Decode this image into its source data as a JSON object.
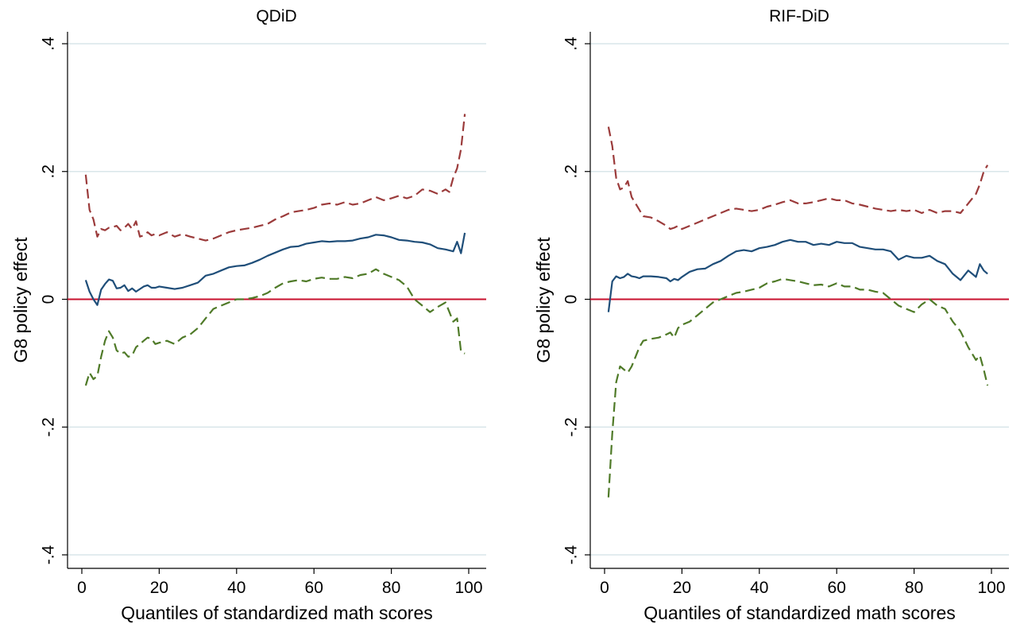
{
  "colors": {
    "estimate": "#1f4e79",
    "upper": "#9b3b3b",
    "lower": "#4f7a28",
    "zero_line": "#c8102e",
    "grid": "#d9e6ea"
  },
  "chart_data": [
    {
      "type": "line",
      "title": "QDiD",
      "xlabel": "Quantiles of standardized math scores",
      "ylabel": "G8 policy effect",
      "xlim": [
        0,
        100
      ],
      "ylim": [
        -0.4,
        0.4
      ],
      "xticks": [
        0,
        20,
        40,
        60,
        80,
        100
      ],
      "yticks": [
        -0.4,
        -0.2,
        0,
        0.2,
        0.4
      ],
      "ytick_labels": [
        "-.4",
        "-.2",
        "0",
        ".2",
        ".4"
      ],
      "grid": true,
      "reference_line_y": 0,
      "series": [
        {
          "role": "estimate",
          "style": "solid",
          "x": [
            1,
            2,
            3,
            4,
            5,
            6,
            7,
            8,
            9,
            10,
            11,
            12,
            13,
            14,
            15,
            16,
            17,
            18,
            19,
            20,
            22,
            24,
            26,
            28,
            30,
            32,
            34,
            36,
            38,
            40,
            42,
            44,
            46,
            48,
            50,
            52,
            54,
            56,
            58,
            60,
            62,
            64,
            66,
            68,
            70,
            72,
            74,
            76,
            78,
            80,
            82,
            84,
            86,
            88,
            90,
            92,
            94,
            96,
            97,
            98,
            99
          ],
          "values": [
            0.03,
            0.012,
            0.0,
            -0.009,
            0.015,
            0.024,
            0.031,
            0.029,
            0.017,
            0.018,
            0.022,
            0.013,
            0.017,
            0.012,
            0.016,
            0.02,
            0.022,
            0.018,
            0.018,
            0.02,
            0.018,
            0.016,
            0.018,
            0.022,
            0.026,
            0.037,
            0.04,
            0.045,
            0.05,
            0.052,
            0.053,
            0.057,
            0.062,
            0.068,
            0.073,
            0.078,
            0.082,
            0.083,
            0.087,
            0.089,
            0.091,
            0.09,
            0.091,
            0.091,
            0.092,
            0.095,
            0.097,
            0.101,
            0.1,
            0.097,
            0.093,
            0.092,
            0.09,
            0.089,
            0.086,
            0.08,
            0.078,
            0.075,
            0.09,
            0.072,
            0.104
          ]
        },
        {
          "role": "upper",
          "style": "dashed",
          "x": [
            1,
            2,
            3,
            4,
            5,
            6,
            7,
            8,
            9,
            10,
            11,
            12,
            13,
            14,
            15,
            16,
            17,
            18,
            19,
            20,
            22,
            24,
            26,
            28,
            30,
            32,
            34,
            36,
            38,
            40,
            42,
            44,
            46,
            48,
            50,
            52,
            54,
            56,
            58,
            60,
            62,
            64,
            66,
            68,
            70,
            72,
            74,
            76,
            78,
            80,
            82,
            84,
            86,
            88,
            90,
            92,
            94,
            95,
            96,
            97,
            98,
            99
          ],
          "values": [
            0.195,
            0.14,
            0.125,
            0.098,
            0.11,
            0.108,
            0.112,
            0.113,
            0.115,
            0.108,
            0.112,
            0.118,
            0.11,
            0.122,
            0.098,
            0.1,
            0.105,
            0.1,
            0.102,
            0.1,
            0.105,
            0.098,
            0.102,
            0.098,
            0.095,
            0.092,
            0.095,
            0.1,
            0.105,
            0.108,
            0.11,
            0.112,
            0.115,
            0.118,
            0.125,
            0.13,
            0.136,
            0.138,
            0.14,
            0.143,
            0.148,
            0.15,
            0.148,
            0.152,
            0.148,
            0.15,
            0.155,
            0.16,
            0.155,
            0.158,
            0.162,
            0.158,
            0.162,
            0.172,
            0.17,
            0.165,
            0.172,
            0.168,
            0.19,
            0.205,
            0.235,
            0.29
          ]
        },
        {
          "role": "lower",
          "style": "dashed",
          "x": [
            1,
            2,
            3,
            4,
            5,
            6,
            7,
            8,
            9,
            10,
            11,
            12,
            13,
            14,
            15,
            16,
            17,
            18,
            19,
            20,
            22,
            24,
            26,
            28,
            30,
            32,
            34,
            36,
            38,
            40,
            42,
            44,
            46,
            48,
            50,
            52,
            54,
            56,
            58,
            60,
            62,
            64,
            66,
            68,
            70,
            72,
            74,
            76,
            78,
            80,
            82,
            84,
            86,
            88,
            90,
            92,
            94,
            96,
            97,
            98,
            99
          ],
          "values": [
            -0.135,
            -0.115,
            -0.125,
            -0.12,
            -0.09,
            -0.065,
            -0.05,
            -0.06,
            -0.08,
            -0.085,
            -0.083,
            -0.09,
            -0.088,
            -0.075,
            -0.07,
            -0.065,
            -0.06,
            -0.062,
            -0.07,
            -0.068,
            -0.065,
            -0.07,
            -0.06,
            -0.055,
            -0.045,
            -0.03,
            -0.015,
            -0.01,
            -0.005,
            0.0,
            0.0,
            0.002,
            0.005,
            0.01,
            0.018,
            0.025,
            0.028,
            0.03,
            0.028,
            0.032,
            0.034,
            0.032,
            0.032,
            0.035,
            0.033,
            0.038,
            0.04,
            0.047,
            0.04,
            0.035,
            0.03,
            0.02,
            0.0,
            -0.01,
            -0.02,
            -0.012,
            -0.005,
            -0.035,
            -0.03,
            -0.082,
            -0.085
          ]
        }
      ]
    },
    {
      "type": "line",
      "title": "RIF-DiD",
      "xlabel": "Quantiles of standardized math scores",
      "ylabel": "G8 policy effect",
      "xlim": [
        0,
        100
      ],
      "ylim": [
        -0.4,
        0.4
      ],
      "xticks": [
        0,
        20,
        40,
        60,
        80,
        100
      ],
      "yticks": [
        -0.4,
        -0.2,
        0,
        0.2,
        0.4
      ],
      "ytick_labels": [
        "-.4",
        "-.2",
        "0",
        ".2",
        ".4"
      ],
      "grid": true,
      "reference_line_y": 0,
      "series": [
        {
          "role": "estimate",
          "style": "solid",
          "x": [
            1,
            2,
            3,
            4,
            5,
            6,
            7,
            8,
            9,
            10,
            12,
            14,
            16,
            17,
            18,
            19,
            20,
            22,
            24,
            26,
            28,
            30,
            32,
            34,
            36,
            38,
            40,
            42,
            44,
            46,
            48,
            50,
            52,
            54,
            56,
            58,
            60,
            62,
            64,
            66,
            68,
            70,
            72,
            74,
            76,
            78,
            80,
            82,
            84,
            86,
            88,
            90,
            92,
            94,
            96,
            97,
            98,
            99
          ],
          "values": [
            -0.02,
            0.028,
            0.036,
            0.033,
            0.035,
            0.04,
            0.036,
            0.035,
            0.033,
            0.036,
            0.036,
            0.035,
            0.033,
            0.028,
            0.032,
            0.03,
            0.035,
            0.043,
            0.047,
            0.048,
            0.055,
            0.06,
            0.068,
            0.075,
            0.077,
            0.075,
            0.08,
            0.082,
            0.085,
            0.09,
            0.093,
            0.09,
            0.09,
            0.085,
            0.087,
            0.085,
            0.09,
            0.088,
            0.088,
            0.082,
            0.08,
            0.078,
            0.078,
            0.075,
            0.062,
            0.068,
            0.065,
            0.065,
            0.068,
            0.06,
            0.055,
            0.04,
            0.03,
            0.045,
            0.035,
            0.055,
            0.045,
            0.04
          ]
        },
        {
          "role": "upper",
          "style": "dashed",
          "x": [
            1,
            2,
            3,
            4,
            5,
            6,
            7,
            8,
            9,
            10,
            12,
            14,
            16,
            17,
            18,
            19,
            20,
            22,
            24,
            26,
            28,
            30,
            32,
            34,
            36,
            38,
            40,
            42,
            44,
            46,
            48,
            50,
            52,
            54,
            56,
            58,
            60,
            62,
            64,
            66,
            68,
            70,
            72,
            74,
            76,
            78,
            80,
            82,
            84,
            86,
            88,
            90,
            92,
            94,
            96,
            97,
            98,
            99
          ],
          "values": [
            0.27,
            0.24,
            0.19,
            0.172,
            0.175,
            0.185,
            0.16,
            0.15,
            0.14,
            0.13,
            0.128,
            0.122,
            0.115,
            0.11,
            0.112,
            0.115,
            0.11,
            0.115,
            0.12,
            0.125,
            0.13,
            0.135,
            0.14,
            0.142,
            0.14,
            0.138,
            0.14,
            0.145,
            0.148,
            0.152,
            0.155,
            0.15,
            0.15,
            0.152,
            0.155,
            0.158,
            0.155,
            0.155,
            0.15,
            0.148,
            0.145,
            0.142,
            0.14,
            0.138,
            0.14,
            0.138,
            0.14,
            0.135,
            0.14,
            0.135,
            0.138,
            0.138,
            0.135,
            0.15,
            0.165,
            0.18,
            0.2,
            0.21
          ]
        },
        {
          "role": "lower",
          "style": "dashed",
          "x": [
            1,
            2,
            3,
            4,
            5,
            6,
            7,
            8,
            9,
            10,
            12,
            14,
            16,
            17,
            18,
            19,
            20,
            22,
            24,
            26,
            28,
            30,
            32,
            34,
            36,
            38,
            40,
            42,
            44,
            46,
            48,
            50,
            52,
            54,
            56,
            58,
            60,
            62,
            64,
            66,
            68,
            70,
            72,
            74,
            76,
            78,
            80,
            82,
            84,
            86,
            88,
            90,
            92,
            94,
            96,
            97,
            98,
            99
          ],
          "values": [
            -0.31,
            -0.21,
            -0.13,
            -0.105,
            -0.11,
            -0.115,
            -0.105,
            -0.09,
            -0.075,
            -0.065,
            -0.062,
            -0.06,
            -0.055,
            -0.052,
            -0.06,
            -0.045,
            -0.04,
            -0.035,
            -0.025,
            -0.015,
            -0.005,
            0.0,
            0.005,
            0.01,
            0.012,
            0.015,
            0.018,
            0.025,
            0.028,
            0.032,
            0.03,
            0.028,
            0.025,
            0.022,
            0.023,
            0.02,
            0.025,
            0.02,
            0.02,
            0.015,
            0.015,
            0.012,
            0.01,
            0.0,
            -0.01,
            -0.015,
            -0.02,
            -0.008,
            0.0,
            -0.01,
            -0.015,
            -0.035,
            -0.05,
            -0.075,
            -0.095,
            -0.088,
            -0.11,
            -0.135
          ]
        }
      ]
    }
  ]
}
